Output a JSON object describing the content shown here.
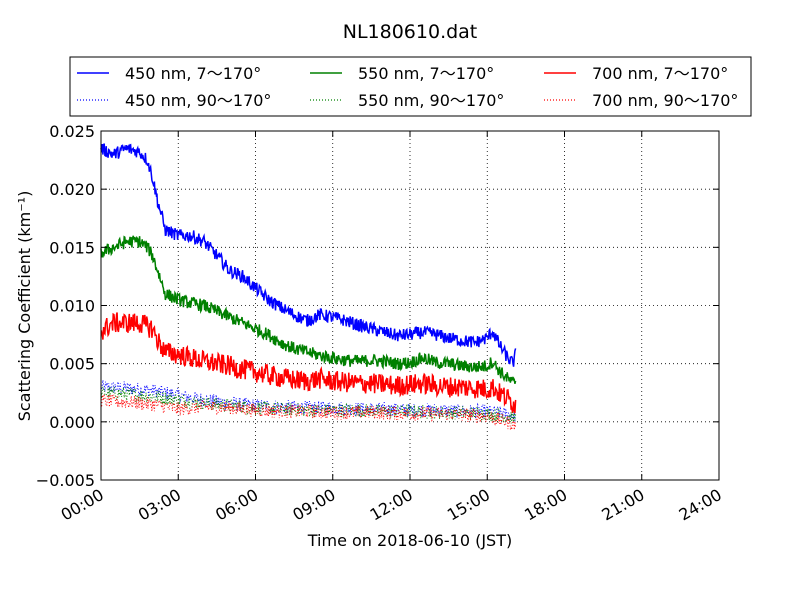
{
  "chart_data": {
    "type": "line",
    "title": "NL180610.dat",
    "xlabel": "Time on 2018-06-10 (JST)",
    "ylabel": "Scattering Coefficient (km⁻¹)",
    "xlim_hours": [
      0,
      24
    ],
    "ylim": [
      -0.005,
      0.025
    ],
    "x_ticks": [
      {
        "hour": 0,
        "label": "00:00"
      },
      {
        "hour": 3,
        "label": "03:00"
      },
      {
        "hour": 6,
        "label": "06:00"
      },
      {
        "hour": 9,
        "label": "09:00"
      },
      {
        "hour": 12,
        "label": "12:00"
      },
      {
        "hour": 15,
        "label": "15:00"
      },
      {
        "hour": 18,
        "label": "18:00"
      },
      {
        "hour": 21,
        "label": "21:00"
      },
      {
        "hour": 24,
        "label": "24:00"
      }
    ],
    "y_ticks": [
      {
        "value": 0.025,
        "label": "0.025"
      },
      {
        "value": 0.02,
        "label": "0.020"
      },
      {
        "value": 0.015,
        "label": "0.015"
      },
      {
        "value": 0.01,
        "label": "0.010"
      },
      {
        "value": 0.005,
        "label": "0.005"
      },
      {
        "value": 0.0,
        "label": "0.000"
      },
      {
        "value": -0.005,
        "label": "−0.005"
      }
    ],
    "grid": true,
    "legend_position": "top-outside",
    "series": [
      {
        "name": "450 nm, 7～170°",
        "color": "#0000ff",
        "style": "solid",
        "x": [
          0.0,
          0.5,
          1.0,
          1.5,
          1.8,
          2.0,
          2.2,
          2.5,
          3.0,
          3.5,
          4.0,
          4.5,
          5.0,
          5.5,
          6.0,
          6.5,
          7.0,
          7.5,
          8.0,
          8.5,
          9.0,
          9.5,
          10.0,
          10.5,
          11.0,
          11.5,
          12.0,
          12.5,
          13.0,
          13.5,
          14.0,
          14.5,
          15.0,
          15.2,
          15.5,
          15.8,
          16.0,
          16.1
        ],
        "y": [
          0.0235,
          0.023,
          0.0235,
          0.0232,
          0.0225,
          0.021,
          0.019,
          0.0165,
          0.016,
          0.016,
          0.0155,
          0.0143,
          0.013,
          0.0125,
          0.0115,
          0.0105,
          0.0098,
          0.0092,
          0.0087,
          0.0092,
          0.009,
          0.0087,
          0.0083,
          0.008,
          0.0077,
          0.0074,
          0.0075,
          0.0077,
          0.0075,
          0.0072,
          0.007,
          0.0068,
          0.0072,
          0.0078,
          0.0065,
          0.0055,
          0.005,
          0.0058
        ]
      },
      {
        "name": "550 nm, 7～170°",
        "color": "#008000",
        "style": "solid",
        "x": [
          0.0,
          0.5,
          1.0,
          1.5,
          1.8,
          2.0,
          2.2,
          2.5,
          3.0,
          3.5,
          4.0,
          4.5,
          5.0,
          5.5,
          6.0,
          6.5,
          7.0,
          7.5,
          8.0,
          8.5,
          9.0,
          9.5,
          10.0,
          10.5,
          11.0,
          11.5,
          12.0,
          12.5,
          13.0,
          13.5,
          14.0,
          14.5,
          15.0,
          15.2,
          15.5,
          15.8,
          16.0,
          16.1
        ],
        "y": [
          0.0145,
          0.015,
          0.0155,
          0.0155,
          0.015,
          0.0143,
          0.013,
          0.011,
          0.0105,
          0.0102,
          0.01,
          0.0095,
          0.009,
          0.0085,
          0.008,
          0.0075,
          0.0068,
          0.0063,
          0.006,
          0.0057,
          0.0055,
          0.0053,
          0.0052,
          0.0053,
          0.0052,
          0.005,
          0.0051,
          0.0055,
          0.0051,
          0.005,
          0.0048,
          0.0047,
          0.0048,
          0.0052,
          0.0043,
          0.0037,
          0.0033,
          0.0036
        ]
      },
      {
        "name": "700 nm, 7～170°",
        "color": "#ff0000",
        "style": "solid",
        "x": [
          0.0,
          0.5,
          1.0,
          1.5,
          1.8,
          2.0,
          2.2,
          2.5,
          3.0,
          3.5,
          4.0,
          4.5,
          5.0,
          5.5,
          6.0,
          6.5,
          7.0,
          7.5,
          8.0,
          8.5,
          9.0,
          9.5,
          10.0,
          10.5,
          11.0,
          11.5,
          12.0,
          12.5,
          13.0,
          13.5,
          14.0,
          14.5,
          15.0,
          15.2,
          15.5,
          15.8,
          16.0,
          16.1
        ],
        "y": [
          0.0078,
          0.0085,
          0.0085,
          0.0085,
          0.0082,
          0.008,
          0.007,
          0.006,
          0.0058,
          0.0055,
          0.0052,
          0.005,
          0.0048,
          0.0045,
          0.0043,
          0.004,
          0.0038,
          0.0036,
          0.0035,
          0.0037,
          0.0035,
          0.0034,
          0.0033,
          0.0033,
          0.0032,
          0.0031,
          0.0032,
          0.0033,
          0.0031,
          0.003,
          0.003,
          0.0029,
          0.0028,
          0.003,
          0.0024,
          0.002,
          0.0016,
          0.0015
        ]
      },
      {
        "name": "450 nm, 90～170°",
        "color": "#0000ff",
        "style": "dotted",
        "x": [
          0.0,
          1.0,
          2.0,
          3.0,
          4.0,
          5.0,
          6.0,
          7.0,
          8.0,
          9.0,
          10.0,
          11.0,
          12.0,
          13.0,
          14.0,
          15.0,
          16.0,
          16.1
        ],
        "y": [
          0.003,
          0.0029,
          0.0027,
          0.0023,
          0.0019,
          0.0016,
          0.0014,
          0.0013,
          0.0012,
          0.0012,
          0.0011,
          0.0011,
          0.001,
          0.001,
          0.0009,
          0.0009,
          0.0006,
          0.0005
        ]
      },
      {
        "name": "550 nm, 90～170°",
        "color": "#008000",
        "style": "dotted",
        "x": [
          0.0,
          1.0,
          2.0,
          3.0,
          4.0,
          5.0,
          6.0,
          7.0,
          8.0,
          9.0,
          10.0,
          11.0,
          12.0,
          13.0,
          14.0,
          15.0,
          16.0,
          16.1
        ],
        "y": [
          0.0025,
          0.0024,
          0.0022,
          0.0019,
          0.0016,
          0.0014,
          0.0012,
          0.0011,
          0.001,
          0.001,
          0.001,
          0.0009,
          0.0009,
          0.0008,
          0.0008,
          0.0007,
          0.0004,
          0.0003
        ]
      },
      {
        "name": "700 nm, 90～170°",
        "color": "#ff0000",
        "style": "dotted",
        "x": [
          0.0,
          1.0,
          2.0,
          3.0,
          4.0,
          5.0,
          6.0,
          7.0,
          8.0,
          9.0,
          10.0,
          11.0,
          12.0,
          13.0,
          14.0,
          15.0,
          16.0,
          16.1
        ],
        "y": [
          0.0018,
          0.0017,
          0.0015,
          0.0011,
          0.0013,
          0.0012,
          0.001,
          0.0009,
          0.0009,
          0.0008,
          0.0008,
          0.0008,
          0.0007,
          0.0007,
          0.0006,
          0.0005,
          -0.0002,
          -0.0003
        ]
      }
    ]
  }
}
